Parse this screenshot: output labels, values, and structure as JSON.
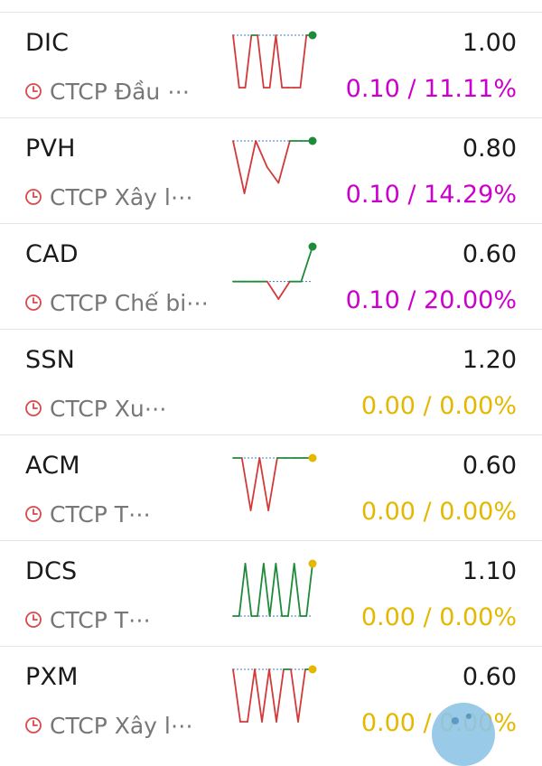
{
  "colors": {
    "up": "#cc00cc",
    "flat": "#e5b800",
    "spark_up": "#1e8a3a",
    "spark_down": "#d23a3a",
    "spark_ref": "#3a78c8",
    "clock": "#d9484a"
  },
  "stocks": [
    {
      "ticker": "DIC",
      "company": "CTCP Đầu ⋯",
      "price": "1.00",
      "change": "0.10 / 11.11%",
      "trend": "up",
      "sparkline": [
        1.0,
        0.9,
        0.9,
        1.0,
        1.0,
        0.9,
        0.9,
        1.0,
        0.9,
        0.9,
        0.9,
        0.9,
        1.0,
        1.0
      ]
    },
    {
      "ticker": "PVH",
      "company": "CTCP Xây l⋯",
      "price": "0.80",
      "change": "0.10 / 14.29%",
      "trend": "up",
      "sparkline": [
        0.8,
        0.7,
        0.8,
        0.75,
        0.72,
        0.8,
        0.8,
        0.8
      ]
    },
    {
      "ticker": "CAD",
      "company": "CTCP Chế bi⋯",
      "price": "0.60",
      "change": "0.10 / 20.00%",
      "trend": "up",
      "sparkline": [
        0.5,
        0.5,
        0.5,
        0.5,
        0.45,
        0.5,
        0.5,
        0.6
      ]
    },
    {
      "ticker": "SSN",
      "company": "CTCP Xu⋯",
      "price": "1.20",
      "change": "0.00 / 0.00%",
      "trend": "flat",
      "sparkline": []
    },
    {
      "ticker": "ACM",
      "company": "CTCP T⋯",
      "price": "0.60",
      "change": "0.00 / 0.00%",
      "trend": "flat",
      "sparkline": [
        0.6,
        0.6,
        0.5,
        0.6,
        0.5,
        0.6,
        0.6,
        0.6,
        0.6,
        0.6
      ]
    },
    {
      "ticker": "DCS",
      "company": "CTCP T⋯",
      "price": "1.10",
      "change": "0.00 / 0.00%",
      "trend": "flat",
      "sparkline": [
        1.0,
        1.0,
        1.1,
        1.0,
        1.0,
        1.1,
        1.0,
        1.1,
        1.0,
        1.0,
        1.1,
        1.0,
        1.0,
        1.1
      ]
    },
    {
      "ticker": "PXM",
      "company": "CTCP Xây l⋯",
      "price": "0.60",
      "change": "0.00 / 0.00%",
      "trend": "flat",
      "sparkline": [
        0.6,
        0.5,
        0.5,
        0.6,
        0.5,
        0.6,
        0.5,
        0.6,
        0.6,
        0.5,
        0.6,
        0.6
      ]
    }
  ]
}
